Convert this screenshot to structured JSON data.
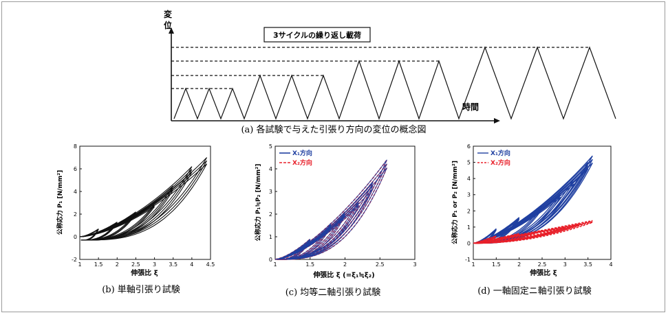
{
  "top": {
    "ylabel": "変位",
    "xlabel": "時間",
    "boxlabel": "3サイクルの繰り返し載荷",
    "caption": "(a)  各試験で与えた引張り方向の変位の概念図"
  },
  "colors": {
    "black": "#111111",
    "blue": "#1f3fa0",
    "red": "#e8202a"
  },
  "chart_data": [
    {
      "type": "line",
      "caption": "(b)  単軸引張り試験",
      "xlabel": "伸張比 ξ",
      "ylabel": "公称応力 P₁ [N/mm²]",
      "xlim": [
        1,
        4.5
      ],
      "ylim": [
        -2,
        8
      ],
      "xticks": [
        "1",
        "1.5",
        "2",
        "2.5",
        "3",
        "3.5",
        "4",
        "4.5"
      ],
      "yticks": [
        "-2",
        "0",
        "2",
        "4",
        "6",
        "8"
      ],
      "cycle_peaks": [
        {
          "x": 1.5,
          "y": 0.7
        },
        {
          "x": 2.0,
          "y": 1.3
        },
        {
          "x": 2.5,
          "y": 2.2
        },
        {
          "x": 3.0,
          "y": 2.9
        },
        {
          "x": 3.5,
          "y": 4.5
        },
        {
          "x": 4.0,
          "y": 6.2
        },
        {
          "x": 4.4,
          "y": 7.0
        }
      ],
      "series": [
        {
          "name": "",
          "color": "#111111",
          "dash": ""
        }
      ]
    },
    {
      "type": "line",
      "caption": "(c)  均等二軸引張り試験",
      "xlabel": "伸張比 ξ (=ξ₁≒ξ₂)",
      "ylabel": "公称応力 P₁≒P₂ [N/mm²]",
      "xlim": [
        1,
        3
      ],
      "ylim": [
        0,
        5
      ],
      "xticks": [
        "1",
        "1.5",
        "2",
        "2.5",
        "3"
      ],
      "yticks": [
        "0",
        "1",
        "2",
        "3",
        "4",
        "5"
      ],
      "legend": [
        "X₁方向",
        "X₂方向"
      ],
      "cycle_peaks": [
        {
          "x": 1.5,
          "y": 0.9
        },
        {
          "x": 1.8,
          "y": 1.6
        },
        {
          "x": 2.0,
          "y": 2.1
        },
        {
          "x": 2.2,
          "y": 2.6
        },
        {
          "x": 2.4,
          "y": 3.4
        },
        {
          "x": 2.6,
          "y": 4.4
        }
      ],
      "series": [
        {
          "name": "X₁方向",
          "color": "#1f3fa0",
          "dash": ""
        },
        {
          "name": "X₂方向",
          "color": "#e8202a",
          "dash": "4 2"
        }
      ]
    },
    {
      "type": "line",
      "caption": "(d)  一軸固定ニ軸引張り試験",
      "xlabel": "伸張比 ξ",
      "ylabel": "公称応力 P₁ or P₂ [N/mm²]",
      "xlim": [
        1,
        4
      ],
      "ylim": [
        -1,
        6
      ],
      "xticks": [
        "1",
        "1.5",
        "2",
        "2.5",
        "3",
        "3.5",
        "4"
      ],
      "yticks": [
        "-1",
        "0",
        "1",
        "2",
        "3",
        "4",
        "5",
        "6"
      ],
      "legend": [
        "X₁方向",
        "X₂方向"
      ],
      "cycle_peaks": [
        {
          "x": 1.5,
          "y": 0.9
        },
        {
          "x": 2.0,
          "y": 1.6
        },
        {
          "x": 2.5,
          "y": 2.3
        },
        {
          "x": 2.9,
          "y": 3.1
        },
        {
          "x": 3.2,
          "y": 4.0
        },
        {
          "x": 3.5,
          "y": 5.0
        },
        {
          "x": 3.6,
          "y": 5.4
        }
      ],
      "x2_peaks": [
        {
          "x": 1.5,
          "y": 0.45
        },
        {
          "x": 2.0,
          "y": 0.6
        },
        {
          "x": 2.5,
          "y": 0.8
        },
        {
          "x": 3.0,
          "y": 1.0
        },
        {
          "x": 3.3,
          "y": 1.2
        },
        {
          "x": 3.6,
          "y": 1.4
        }
      ],
      "series": [
        {
          "name": "X₁方向",
          "color": "#1f3fa0",
          "dash": ""
        },
        {
          "name": "X₂方向",
          "color": "#e8202a",
          "dash": "3 2"
        }
      ]
    }
  ]
}
